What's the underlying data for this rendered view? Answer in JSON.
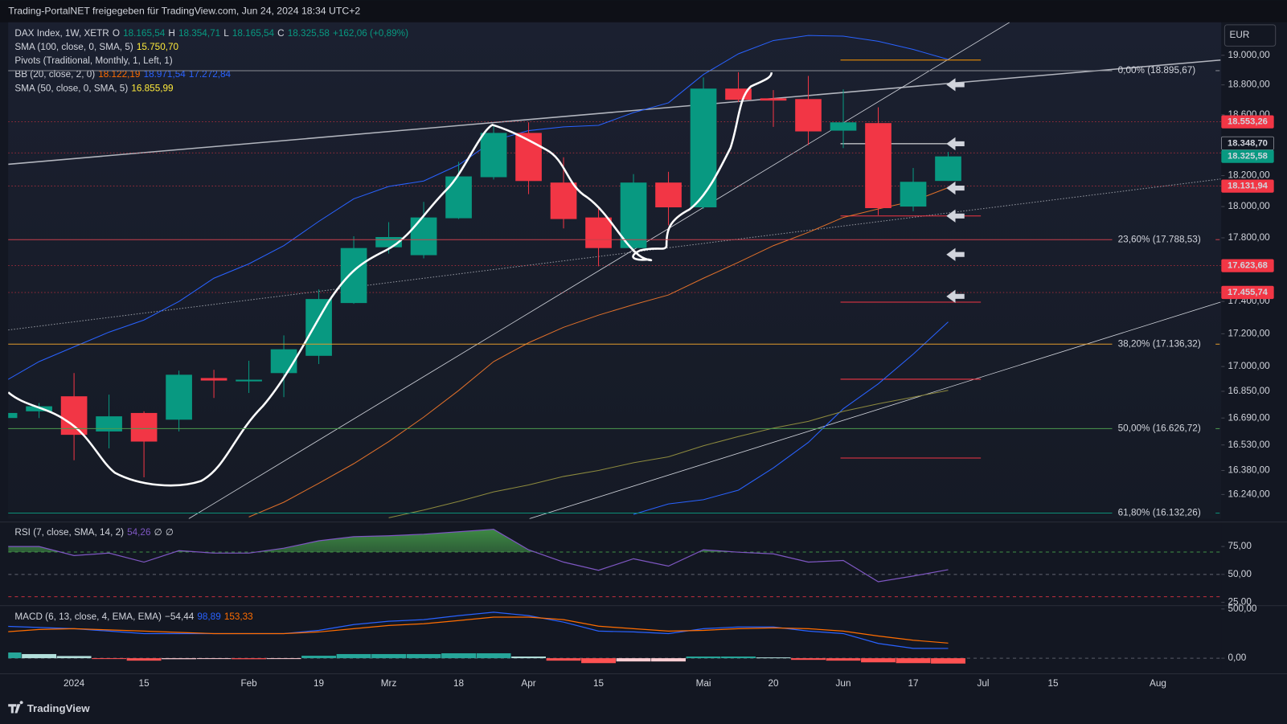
{
  "header": {
    "title": "Trading-PortalNET freigegeben für TradingView.com, Jun 24, 2024 18:34 UTC+2",
    "currency": "EUR",
    "brand": "TradingView"
  },
  "chart_data": [
    {
      "type": "candlestick",
      "log_scale": true,
      "up_color": "#089981",
      "down_color": "#f23645",
      "categories": [
        null,
        null,
        "2024",
        null,
        "15",
        null,
        null,
        "Feb",
        null,
        "19",
        null,
        "Mrz",
        null,
        "18",
        null,
        "Apr",
        null,
        "15",
        null,
        null,
        "Mai",
        null,
        "20",
        null,
        "Jun",
        null,
        "17",
        null,
        "Jul",
        null,
        "15",
        null,
        null,
        "Aug"
      ],
      "open": [
        16690,
        16730,
        16820,
        16610,
        16720,
        16680,
        16930,
        16910,
        16960,
        17065,
        17390,
        17740,
        17690,
        17925,
        18190,
        18480,
        18155,
        17930,
        17735,
        18155,
        17995,
        18775,
        18710,
        18705,
        18495,
        18545,
        18000,
        18165.54,
        null,
        null,
        null,
        null,
        null,
        null
      ],
      "high": [
        16740,
        16780,
        16960,
        16830,
        16730,
        16975,
        16980,
        17035,
        17190,
        17475,
        17810,
        17900,
        18030,
        18290,
        18535,
        18550,
        18320,
        17985,
        18210,
        18225,
        18850,
        18885,
        18765,
        18860,
        18770,
        18650,
        18250,
        18354.71,
        null,
        null,
        null,
        null,
        null,
        null
      ],
      "low": [
        16670,
        16690,
        16440,
        16510,
        16340,
        16610,
        16810,
        16840,
        16815,
        17015,
        17385,
        17700,
        17670,
        17920,
        18175,
        18080,
        17860,
        17620,
        17725,
        17880,
        17985,
        18685,
        18520,
        18400,
        18380,
        17945,
        17970,
        18165.54,
        null,
        null,
        null,
        null,
        null,
        null
      ],
      "close": [
        16720,
        16760,
        16590,
        16700,
        16550,
        16950,
        16915,
        16920,
        17105,
        17415,
        17735,
        17805,
        17930,
        18195,
        18480,
        18165,
        17920,
        17735,
        18155,
        17995,
        18775,
        18700,
        18695,
        18490,
        18550,
        17990,
        18160,
        18325.58,
        null,
        null,
        null,
        null,
        null,
        null
      ],
      "series": [
        {
          "color": "#2962ff",
          "values": [
            16908,
            17030,
            17120,
            17210,
            17285,
            17400,
            17545,
            17635,
            17750,
            17905,
            18050,
            18130,
            18165,
            18270,
            18430,
            18495,
            18520,
            18530,
            18615,
            18680,
            18870,
            19010,
            19100,
            19135,
            19130,
            19095,
            19040,
            18971.54,
            null,
            null,
            null,
            null,
            null,
            null
          ]
        },
        {
          "color": "#e0702a",
          "values": [
            null,
            null,
            null,
            null,
            null,
            null,
            null,
            16110,
            16195,
            16305,
            16420,
            16550,
            16695,
            16855,
            17030,
            17145,
            17240,
            17315,
            17380,
            17440,
            17545,
            17645,
            17750,
            17835,
            17930,
            17985,
            18035,
            18122.19,
            null,
            null,
            null,
            null,
            null,
            null
          ]
        },
        {
          "color": "#2962ff",
          "values": [
            null,
            null,
            null,
            null,
            null,
            null,
            null,
            null,
            null,
            null,
            null,
            null,
            null,
            null,
            null,
            null,
            null,
            null,
            16125,
            16185,
            16210,
            16265,
            16395,
            16545,
            16745,
            16895,
            17075,
            17272.84,
            null,
            null,
            null,
            null,
            null,
            null
          ]
        },
        {
          "color": "#8d8a3e",
          "values": [
            null,
            null,
            null,
            null,
            null,
            null,
            null,
            null,
            null,
            null,
            null,
            16105,
            16150,
            16200,
            16255,
            16295,
            16345,
            16380,
            16425,
            16460,
            16525,
            16580,
            16630,
            16670,
            16730,
            16775,
            16815,
            16855.99,
            null,
            null,
            null,
            null,
            null,
            null
          ]
        }
      ],
      "ylim": [
        16100,
        19225
      ],
      "yticks": [
        {
          "value": 19000,
          "label": "19.000,00"
        },
        {
          "value": 18800,
          "label": "18.800,00"
        },
        {
          "value": 18600,
          "label": "18.600,00"
        },
        {
          "value": 18200,
          "label": "18.200,00"
        },
        {
          "value": 18000,
          "label": "18.000,00"
        },
        {
          "value": 17800,
          "label": "17.800,00"
        },
        {
          "value": 17400,
          "label": "17.400,00"
        },
        {
          "value": 17200,
          "label": "17.200,00"
        },
        {
          "value": 17000,
          "label": "17.000,00"
        },
        {
          "value": 16850,
          "label": "16.850,00"
        },
        {
          "value": 16690,
          "label": "16.690,00"
        },
        {
          "value": 16530,
          "label": "16.530,00"
        },
        {
          "value": 16380,
          "label": "16.380,00"
        },
        {
          "value": 16240,
          "label": "16.240,00"
        }
      ],
      "price_tags": [
        {
          "value": 18553.26,
          "label": "18.553,26",
          "color": "#f23645",
          "line_color": "#f23645"
        },
        {
          "value": 18348.7,
          "label": "18.348,70",
          "color": "#131722",
          "line_color": "#f23645"
        },
        {
          "value": 18325.58,
          "label": "18.325,58",
          "color": "#089981"
        },
        {
          "value": 18131.94,
          "label": "18.131,94",
          "color": "#f23645",
          "line_color": "#f23645"
        },
        {
          "value": 17623.68,
          "label": "17.623,68",
          "color": "#f23645",
          "line_color": "#f23645"
        },
        {
          "value": 17455.74,
          "label": "17.455,74",
          "color": "#f23645",
          "line_color": "#f23645"
        }
      ],
      "fib_levels": [
        {
          "value": 18895.67,
          "label": "0,00% (18.895,67)",
          "color": "#8a8d96"
        },
        {
          "value": 17788.53,
          "label": "23,60% (17.788,53)",
          "color": "#c7404d"
        },
        {
          "value": 17136.32,
          "label": "38,20% (17.136,32)",
          "color": "#e09a2c"
        },
        {
          "value": 16626.72,
          "label": "50,00% (16.626,72)",
          "color": "#4c9a4f"
        },
        {
          "value": 16132.26,
          "label": "61,80% (16.132,26)",
          "color": "#0b8f78"
        }
      ],
      "legend": [
        [
          {
            "text": "DAX Index, 1W, XETR",
            "color": "#d1d4dc"
          },
          {
            "text": "O",
            "color": "#d1d4dc"
          },
          {
            "text": "18.165,54",
            "color": "#089981"
          },
          {
            "text": "H",
            "color": "#d1d4dc"
          },
          {
            "text": "18.354,71",
            "color": "#089981"
          },
          {
            "text": "L",
            "color": "#d1d4dc"
          },
          {
            "text": "18.165,54",
            "color": "#089981"
          },
          {
            "text": "C",
            "color": "#d1d4dc"
          },
          {
            "text": "18.325,58",
            "color": "#089981"
          },
          {
            "text": "+162,06 (+0,89%)",
            "color": "#089981"
          }
        ],
        [
          {
            "text": "SMA (100, close, 0, SMA, 5)",
            "color": "#d1d4dc"
          },
          {
            "text": "15.750,70",
            "color": "#ffeb3b"
          }
        ],
        [
          {
            "text": "Pivots (Traditional, Monthly, 1, Left, 1)",
            "color": "#d1d4dc"
          }
        ],
        [
          {
            "text": "BB (20, close, 2, 0)",
            "color": "#d1d4dc"
          },
          {
            "text": "18.122,19",
            "color": "#ff6d00"
          },
          {
            "text": "18.971,54",
            "color": "#2962ff"
          },
          {
            "text": "17.272,84",
            "color": "#2962ff"
          }
        ],
        [
          {
            "text": "SMA (50, close, 0, SMA, 5)",
            "color": "#d1d4dc"
          },
          {
            "text": "16.855,99",
            "color": "#ffeb3b"
          }
        ]
      ]
    },
    {
      "type": "line",
      "series": [
        {
          "color": "#7e57c2",
          "values": [
            75,
            75,
            66.9,
            69.1,
            61,
            71.3,
            69.1,
            69.1,
            73.5,
            80.1,
            83.8,
            84.6,
            86,
            88.2,
            90.4,
            72,
            61,
            53.7,
            64,
            57.4,
            72,
            69.9,
            68.4,
            61,
            62.5,
            43.4,
            48.5,
            54.26,
            null,
            null,
            null,
            null,
            null,
            null
          ]
        }
      ],
      "ylim": [
        22,
        94
      ],
      "yticks": [
        {
          "value": 75,
          "label": "75,00"
        },
        {
          "value": 50,
          "label": "50,00"
        },
        {
          "value": 25,
          "label": "25,00"
        }
      ],
      "levels": [
        70,
        50,
        30
      ],
      "level_colors": [
        "#4caf50",
        "#787b86",
        "#f23645"
      ],
      "fill_color": "#4caf50",
      "legend": [
        [
          {
            "text": "RSI (7, close, SMA, 14, 2)",
            "color": "#d1d4dc"
          },
          {
            "text": "54,26",
            "color": "#7e57c2"
          },
          {
            "text": "∅",
            "color": "#d1d4dc"
          },
          {
            "text": "∅",
            "color": "#d1d4dc"
          }
        ]
      ]
    },
    {
      "type": "macd",
      "series": [
        {
          "color": "#2962ff",
          "values": [
            325,
            312,
            300,
            275,
            250,
            250,
            250,
            250,
            250,
            283,
            342,
            375,
            392,
            433,
            467,
            433,
            367,
            275,
            267,
            250,
            300,
            317,
            317,
            275,
            250,
            150,
            100,
            98.89,
            null,
            null,
            null,
            null,
            null,
            null
          ]
        },
        {
          "color": "#ff6d00",
          "values": [
            267,
            292,
            300,
            288,
            275,
            262,
            250,
            250,
            250,
            267,
            300,
            333,
            350,
            383,
            417,
            417,
            392,
            325,
            300,
            275,
            283,
            300,
            308,
            300,
            275,
            225,
            183,
            153.33,
            null,
            null,
            null,
            null,
            null,
            null
          ]
        }
      ],
      "histogram": [
        58,
        42,
        22,
        -4,
        -25,
        -10,
        -8,
        -10,
        -8,
        25,
        42,
        42,
        42,
        50,
        50,
        17,
        -25,
        -50,
        -33,
        -33,
        17,
        17,
        8,
        -17,
        -25,
        -42,
        -50,
        -54.44,
        null,
        null,
        null,
        null,
        null,
        null
      ],
      "histogram_colors": [
        "#26a69a",
        "#b2dfdb",
        "#ff5252",
        "#ffcdd2"
      ],
      "ylim": [
        -150,
        517
      ],
      "yticks": [
        {
          "value": 500,
          "label": "500,00"
        },
        {
          "value": 0,
          "label": "0,00"
        }
      ],
      "legend": [
        [
          {
            "text": "MACD (6, 13, close, 4, EMA, EMA)",
            "color": "#d1d4dc"
          },
          {
            "text": "−54,44",
            "color": "#d1d4dc"
          },
          {
            "text": "98,89",
            "color": "#2962ff"
          },
          {
            "text": "153,33",
            "color": "#ff6d00"
          }
        ]
      ]
    }
  ]
}
